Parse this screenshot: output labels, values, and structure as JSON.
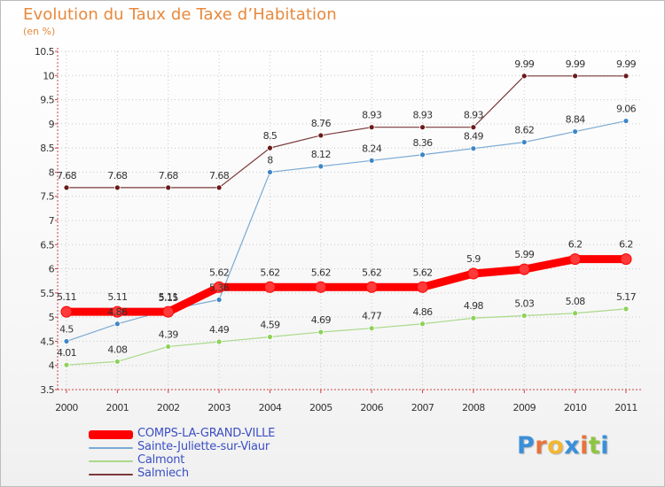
{
  "chart_data": {
    "type": "line",
    "title": "Evolution du Taux de Taxe d’Habitation",
    "subtitle": "(en %)",
    "categories": [
      "2000",
      "2001",
      "2002",
      "2003",
      "2004",
      "2005",
      "2006",
      "2007",
      "2008",
      "2009",
      "2010",
      "2011"
    ],
    "ylim": [
      3.5,
      10.5
    ],
    "yticks": [
      "3.5",
      "4",
      "4.5",
      "5",
      "5.5",
      "6",
      "6.5",
      "7",
      "7.5",
      "8",
      "8.5",
      "9",
      "9.5",
      "10",
      "10.5"
    ],
    "grid": true,
    "legend_position": "bottom-left",
    "series": [
      {
        "name": "COMPS-LA-GRAND-VILLE",
        "values": [
          5.11,
          5.11,
          5.11,
          5.62,
          5.62,
          5.62,
          5.62,
          5.62,
          5.9,
          5.99,
          6.2,
          6.2
        ],
        "labels": [
          "5.11",
          "5.11",
          "5.11",
          "5.62",
          "5.62",
          "5.62",
          "5.62",
          "5.62",
          "5.9",
          "5.99",
          "6.2",
          "6.2"
        ],
        "color": "#ff0000",
        "marker_fill": "#ff3a3a",
        "width": 9,
        "marker_r": 6
      },
      {
        "name": "Sainte-Juliette-sur-Viaur",
        "values": [
          4.5,
          4.86,
          5.15,
          5.36,
          8,
          8.12,
          8.24,
          8.36,
          8.49,
          8.62,
          8.84,
          9.06
        ],
        "labels": [
          "4.5",
          "4.86",
          "5.15",
          "5.36",
          "8",
          "8.12",
          "8.24",
          "8.36",
          "8.49",
          "8.62",
          "8.84",
          "9.06"
        ],
        "color": "#7aa9d4",
        "marker_fill": "#3f86c6",
        "width": 1.2,
        "marker_r": 3
      },
      {
        "name": "Calmont",
        "values": [
          4.01,
          4.08,
          4.39,
          4.49,
          4.59,
          4.69,
          4.77,
          4.86,
          4.98,
          5.03,
          5.08,
          5.17
        ],
        "labels": [
          "4.01",
          "4.08",
          "4.39",
          "4.49",
          "4.59",
          "4.69",
          "4.77",
          "4.86",
          "4.98",
          "5.03",
          "5.08",
          "5.17"
        ],
        "color": "#a9d98a",
        "marker_fill": "#8ed25a",
        "width": 1.2,
        "marker_r": 3
      },
      {
        "name": "Salmiech",
        "values": [
          7.68,
          7.68,
          7.68,
          7.68,
          8.5,
          8.76,
          8.93,
          8.93,
          8.93,
          9.99,
          9.99,
          9.99
        ],
        "labels": [
          "7.68",
          "7.68",
          "7.68",
          "7.68",
          "8.5",
          "8.76",
          "8.93",
          "8.93",
          "8.93",
          "9.99",
          "9.99",
          "9.99"
        ],
        "color": "#7a3a3a",
        "marker_fill": "#6b1a1a",
        "width": 1.2,
        "marker_r": 3
      }
    ]
  },
  "logo": {
    "letters": [
      "P",
      "r",
      "o",
      "x",
      "i",
      "t",
      "i"
    ],
    "colors": [
      "#3a8fd9",
      "#e8733a",
      "#f2b632",
      "#3a8fd9",
      "#e8733a",
      "#8dc63f",
      "#3a8fd9"
    ]
  }
}
